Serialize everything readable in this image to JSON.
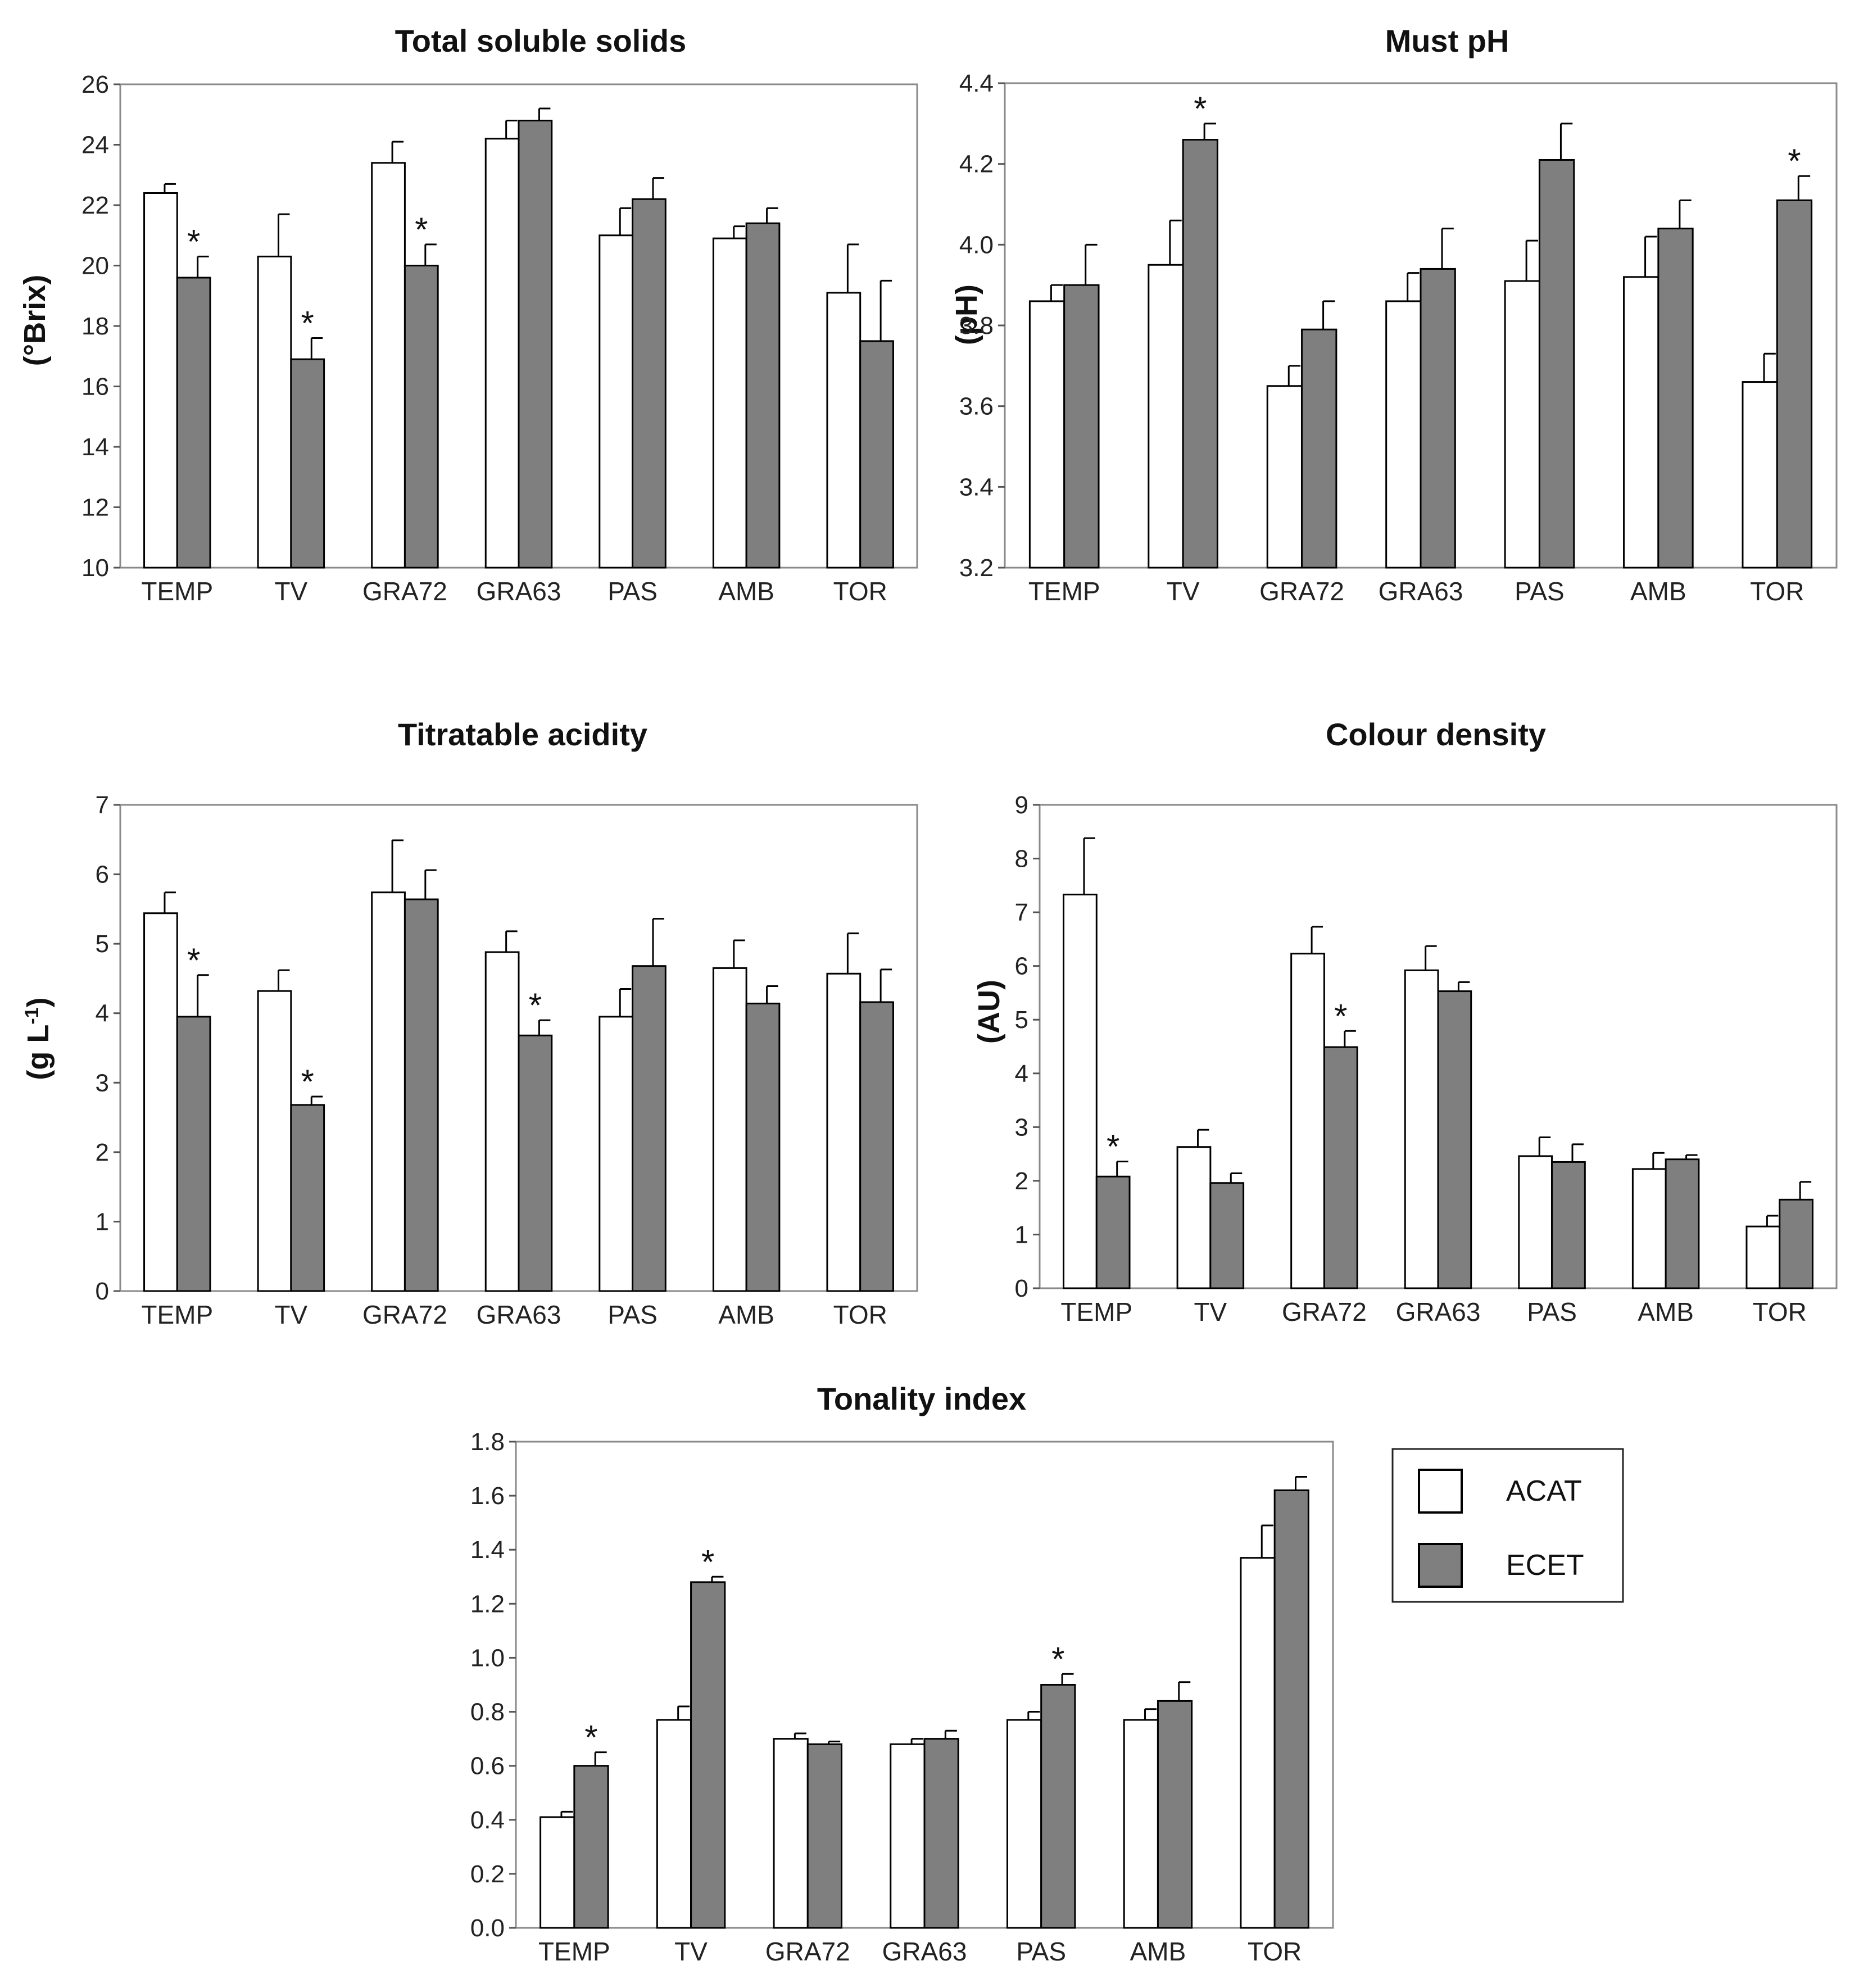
{
  "colors": {
    "acat": "#ffffff",
    "ecet": "#7f7f7f",
    "stroke": "#000000",
    "frame": "#8a8a8a"
  },
  "legend": {
    "items": [
      {
        "label": "ACAT",
        "color": "#ffffff"
      },
      {
        "label": "ECET",
        "color": "#7f7f7f"
      }
    ]
  },
  "chart_data": [
    {
      "id": "tss",
      "type": "bar",
      "title": "Total soluble solids",
      "ylabel": "(°Brix)",
      "ylim": [
        10,
        26
      ],
      "yticks": [
        "10",
        "12",
        "14",
        "16",
        "18",
        "20",
        "22",
        "24",
        "26"
      ],
      "categories": [
        "TEMP",
        "TV",
        "GRA72",
        "GRA63",
        "PAS",
        "AMB",
        "TOR"
      ],
      "series": [
        {
          "name": "ACAT",
          "values": [
            22.4,
            20.3,
            23.4,
            24.2,
            21.0,
            20.9,
            19.1
          ],
          "errors": [
            0.3,
            1.4,
            0.7,
            0.6,
            0.9,
            0.4,
            1.6
          ]
        },
        {
          "name": "ECET",
          "values": [
            19.6,
            16.9,
            20.0,
            24.8,
            22.2,
            21.4,
            17.5
          ],
          "errors": [
            0.7,
            0.7,
            0.7,
            0.4,
            0.7,
            0.5,
            2.0
          ]
        }
      ],
      "significant": [
        true,
        true,
        true,
        false,
        false,
        false,
        false
      ]
    },
    {
      "id": "ph",
      "type": "bar",
      "title": "Must pH",
      "ylabel": "(pH)",
      "ylim": [
        3.2,
        4.4
      ],
      "yticks": [
        "3.2",
        "3.4",
        "3.6",
        "3.8",
        "4.0",
        "4.2",
        "4.4"
      ],
      "categories": [
        "TEMP",
        "TV",
        "GRA72",
        "GRA63",
        "PAS",
        "AMB",
        "TOR"
      ],
      "series": [
        {
          "name": "ACAT",
          "values": [
            3.86,
            3.95,
            3.65,
            3.86,
            3.91,
            3.92,
            3.66
          ],
          "errors": [
            0.04,
            0.11,
            0.05,
            0.07,
            0.1,
            0.1,
            0.07
          ]
        },
        {
          "name": "ECET",
          "values": [
            3.9,
            4.26,
            3.79,
            3.94,
            4.21,
            4.04,
            4.11
          ],
          "errors": [
            0.1,
            0.04,
            0.07,
            0.1,
            0.09,
            0.07,
            0.06
          ]
        }
      ],
      "significant": [
        false,
        true,
        false,
        false,
        false,
        false,
        true
      ]
    },
    {
      "id": "ta",
      "type": "bar",
      "title": "Titratable acidity",
      "ylabel": "(g L",
      "ylabel_sup": "-1",
      "ylabel_end": ")",
      "ylim": [
        0,
        7
      ],
      "yticks": [
        "0",
        "1",
        "2",
        "3",
        "4",
        "5",
        "6",
        "7"
      ],
      "categories": [
        "TEMP",
        "TV",
        "GRA72",
        "GRA63",
        "PAS",
        "AMB",
        "TOR"
      ],
      "series": [
        {
          "name": "ACAT",
          "values": [
            5.44,
            4.32,
            5.74,
            4.88,
            3.95,
            4.65,
            4.57
          ],
          "errors": [
            0.3,
            0.3,
            0.75,
            0.3,
            0.4,
            0.4,
            0.58
          ]
        },
        {
          "name": "ECET",
          "values": [
            3.95,
            2.68,
            5.64,
            3.68,
            4.68,
            4.14,
            4.16
          ],
          "errors": [
            0.6,
            0.12,
            0.42,
            0.22,
            0.68,
            0.25,
            0.47
          ]
        }
      ],
      "significant": [
        true,
        true,
        false,
        true,
        false,
        false,
        false
      ]
    },
    {
      "id": "cd",
      "type": "bar",
      "title": "Colour density",
      "ylabel": "(AU)",
      "ylim": [
        0,
        9
      ],
      "yticks": [
        "0",
        "1",
        "2",
        "3",
        "4",
        "5",
        "6",
        "7",
        "8",
        "9"
      ],
      "categories": [
        "TEMP",
        "TV",
        "GRA72",
        "GRA63",
        "PAS",
        "AMB",
        "TOR"
      ],
      "series": [
        {
          "name": "ACAT",
          "values": [
            7.33,
            2.63,
            6.23,
            5.92,
            2.46,
            2.22,
            1.15
          ],
          "errors": [
            1.05,
            0.32,
            0.5,
            0.45,
            0.35,
            0.3,
            0.2
          ]
        },
        {
          "name": "ECET",
          "values": [
            2.08,
            1.96,
            4.49,
            5.53,
            2.35,
            2.4,
            1.65
          ],
          "errors": [
            0.28,
            0.18,
            0.3,
            0.17,
            0.33,
            0.08,
            0.33
          ]
        }
      ],
      "significant": [
        true,
        false,
        true,
        false,
        false,
        false,
        false
      ]
    },
    {
      "id": "ti",
      "type": "bar",
      "title": "Tonality index",
      "ylabel": "",
      "ylim": [
        0,
        1.8
      ],
      "yticks": [
        "0.0",
        "0.2",
        "0.4",
        "0.6",
        "0.8",
        "1.0",
        "1.2",
        "1.4",
        "1.6",
        "1.8"
      ],
      "categories": [
        "TEMP",
        "TV",
        "GRA72",
        "GRA63",
        "PAS",
        "AMB",
        "TOR"
      ],
      "series": [
        {
          "name": "ACAT",
          "values": [
            0.41,
            0.77,
            0.7,
            0.68,
            0.77,
            0.77,
            1.37
          ],
          "errors": [
            0.02,
            0.05,
            0.02,
            0.02,
            0.03,
            0.04,
            0.12
          ]
        },
        {
          "name": "ECET",
          "values": [
            0.6,
            1.28,
            0.68,
            0.7,
            0.9,
            0.84,
            1.62
          ],
          "errors": [
            0.05,
            0.02,
            0.01,
            0.03,
            0.04,
            0.07,
            0.05
          ]
        }
      ],
      "significant": [
        true,
        true,
        false,
        false,
        true,
        false,
        false
      ]
    }
  ],
  "significance_marker": "*"
}
